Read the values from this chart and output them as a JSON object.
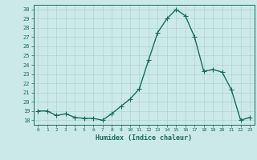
{
  "x": [
    0,
    1,
    2,
    3,
    4,
    5,
    6,
    7,
    8,
    9,
    10,
    11,
    12,
    13,
    14,
    15,
    16,
    17,
    18,
    19,
    20,
    21,
    22,
    23
  ],
  "y": [
    19,
    19,
    18.5,
    18.7,
    18.3,
    18.2,
    18.2,
    18,
    18.7,
    19.5,
    20.3,
    21.4,
    24.5,
    27.5,
    29,
    30,
    29.3,
    27,
    23.3,
    23.5,
    23.2,
    21.3,
    18,
    18.3
  ],
  "line_color": "#1a6b5a",
  "marker": "+",
  "marker_size": 4,
  "linewidth": 1.0,
  "xlabel": "Humidex (Indice chaleur)",
  "xlim": [
    -0.5,
    23.5
  ],
  "ylim": [
    17.5,
    30.5
  ],
  "yticks": [
    18,
    19,
    20,
    21,
    22,
    23,
    24,
    25,
    26,
    27,
    28,
    29,
    30
  ],
  "xticks": [
    0,
    1,
    2,
    3,
    4,
    5,
    6,
    7,
    8,
    9,
    10,
    11,
    12,
    13,
    14,
    15,
    16,
    17,
    18,
    19,
    20,
    21,
    22,
    23
  ],
  "bg_color": "#cce9e9",
  "grid_color": "#aad4d4",
  "tick_color": "#1a6b5a",
  "label_color": "#1a6b5a"
}
